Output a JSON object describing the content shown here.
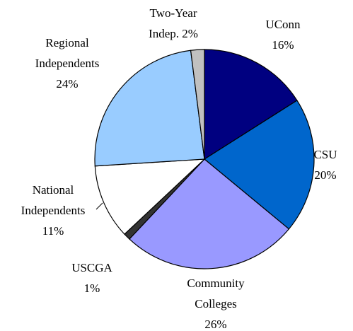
{
  "chart_data": {
    "type": "pie",
    "categories": [
      "UConn",
      "CSU",
      "Community Colleges",
      "USCGA",
      "National Independents",
      "Regional Independents",
      "Two-Year Indep."
    ],
    "values": [
      16,
      20,
      26,
      1,
      11,
      24,
      2
    ],
    "value_labels": [
      "16%",
      "20%",
      "26%",
      "1%",
      "11%",
      "24%",
      "2%"
    ],
    "colors": [
      "#000080",
      "#0066cc",
      "#9999ff",
      "#333333",
      "#ffffff",
      "#99ccff",
      "#c0c0c0"
    ]
  }
}
